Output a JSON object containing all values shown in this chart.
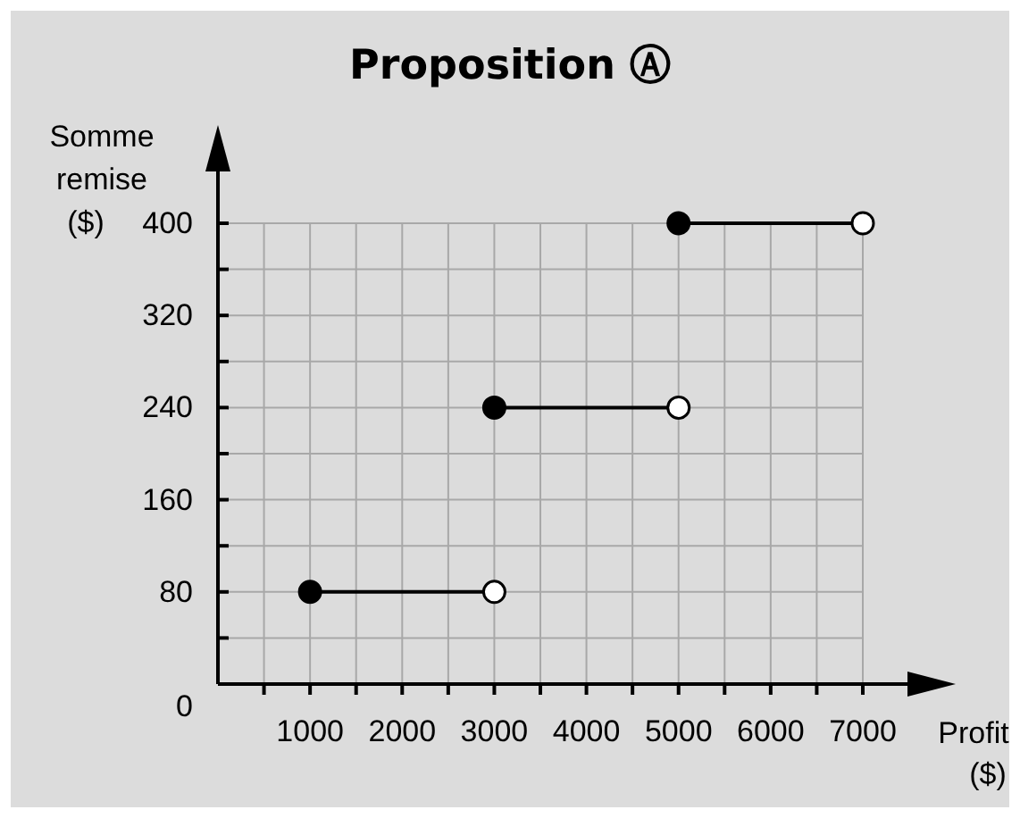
{
  "chart_data": {
    "type": "line",
    "title": "Proposition Ⓐ",
    "xlabel": "Profit\n($)",
    "ylabel": "Somme\nremise\n($)",
    "series": [
      {
        "color": "#000000",
        "x": [
          1000,
          3000
        ],
        "values": [
          80,
          80
        ]
      },
      {
        "color": "#000000",
        "x": [
          3000,
          5000
        ],
        "values": [
          240,
          240
        ]
      },
      {
        "color": "#000000",
        "x": [
          5000,
          7000
        ],
        "values": [
          400,
          400
        ]
      }
    ],
    "marker": "circle",
    "line_style": "solid",
    "grid": true,
    "xlim": [
      0,
      7000
    ],
    "ylim": [
      0,
      400
    ],
    "xticks": [
      {
        "value": 500,
        "label": null
      },
      1000,
      {
        "value": 1500,
        "label": null
      },
      2000,
      {
        "value": 2500,
        "label": null
      },
      3000,
      {
        "value": 3500,
        "label": null
      },
      4000,
      {
        "value": 4500,
        "label": null
      },
      5000,
      {
        "value": 5500,
        "label": null
      },
      6000,
      {
        "value": 6500,
        "label": null
      },
      7000
    ],
    "yticks": [
      0,
      {
        "value": 40,
        "label": null
      },
      80,
      {
        "value": 120,
        "label": null
      },
      160,
      {
        "value": 200,
        "label": null
      },
      240,
      {
        "value": 280,
        "label": null
      },
      320,
      {
        "value": 360,
        "label": null
      },
      400
    ]
  }
}
